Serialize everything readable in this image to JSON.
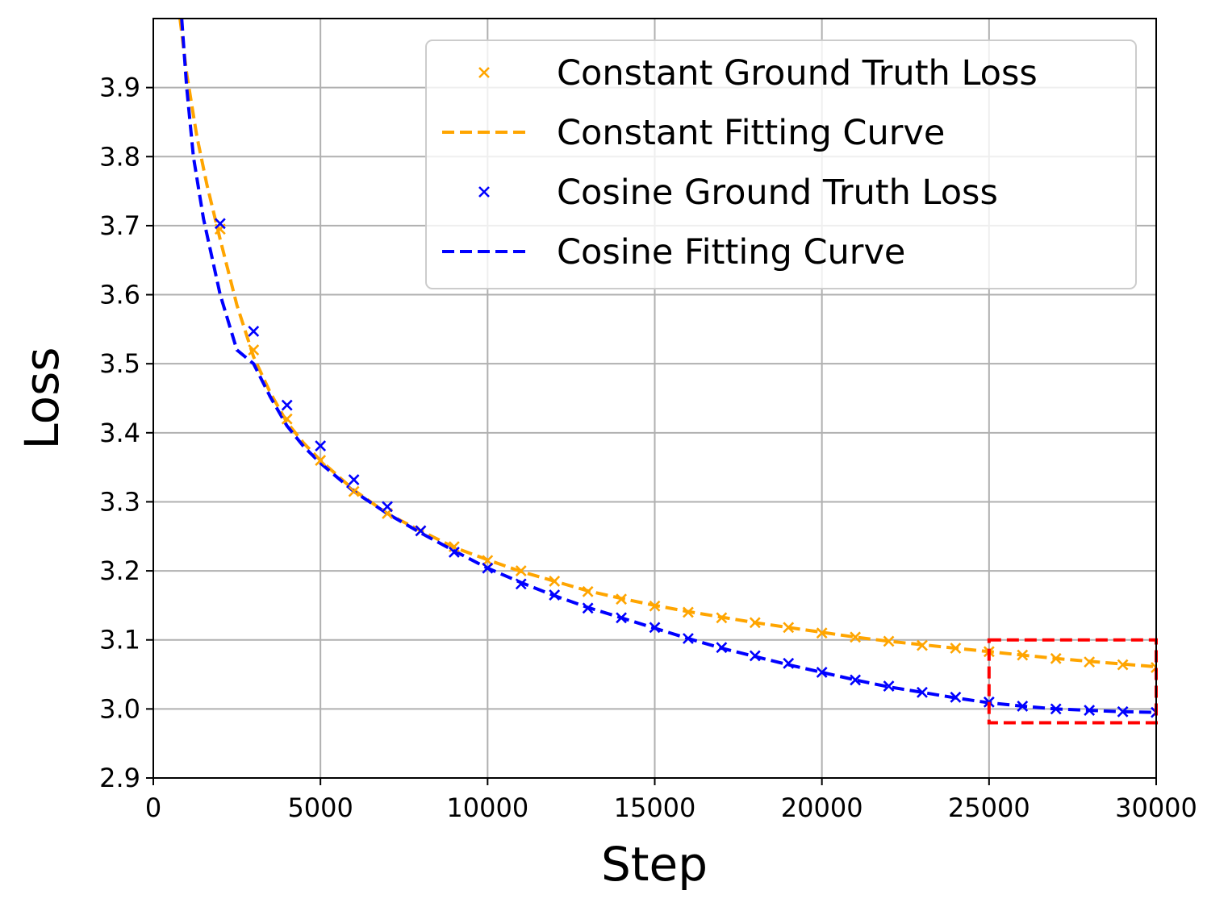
{
  "chart_data": {
    "type": "line",
    "title": "",
    "xlabel": "Step",
    "ylabel": "Loss",
    "xlim": [
      0,
      30000
    ],
    "ylim": [
      2.9,
      4.0
    ],
    "xticks": [
      0,
      5000,
      10000,
      15000,
      20000,
      25000,
      30000
    ],
    "xtick_labels": [
      "0",
      "5000",
      "10000",
      "15000",
      "20000",
      "25000",
      "30000"
    ],
    "yticks": [
      2.9,
      3.0,
      3.1,
      3.2,
      3.3,
      3.4,
      3.5,
      3.6,
      3.7,
      3.8,
      3.9
    ],
    "ytick_labels": [
      "2.9",
      "3.0",
      "3.1",
      "3.2",
      "3.3",
      "3.4",
      "3.5",
      "3.6",
      "3.7",
      "3.8",
      "3.9"
    ],
    "grid": true,
    "legend_position": "top-right",
    "series": [
      {
        "name": "Constant Ground Truth Loss",
        "kind": "markers",
        "marker": "x",
        "color": "#FFA500",
        "x": [
          2000,
          3000,
          4000,
          5000,
          6000,
          7000,
          8000,
          9000,
          10000,
          11000,
          12000,
          13000,
          14000,
          15000,
          16000,
          17000,
          18000,
          19000,
          20000,
          21000,
          22000,
          23000,
          24000,
          25000,
          26000,
          27000,
          28000,
          29000,
          30000
        ],
        "y": [
          3.695,
          3.52,
          3.42,
          3.36,
          3.315,
          3.283,
          3.258,
          3.235,
          3.215,
          3.2,
          3.185,
          3.17,
          3.159,
          3.149,
          3.14,
          3.132,
          3.125,
          3.118,
          3.11,
          3.104,
          3.098,
          3.092,
          3.088,
          3.083,
          3.078,
          3.073,
          3.068,
          3.064,
          3.06
        ]
      },
      {
        "name": "Constant Fitting Curve",
        "kind": "dashed",
        "color": "#FFA500",
        "x": [
          800,
          1000,
          1300,
          1600,
          2000,
          2500,
          3000,
          3500,
          4000,
          4500,
          5000,
          6000,
          7000,
          8000,
          9000,
          10000,
          11000,
          12000,
          13000,
          14000,
          15000,
          16000,
          17000,
          18000,
          19000,
          20000,
          21000,
          22000,
          23000,
          24000,
          25000,
          26000,
          27000,
          28000,
          29000,
          30000
        ],
        "y": [
          4.0,
          3.92,
          3.83,
          3.76,
          3.68,
          3.585,
          3.51,
          3.458,
          3.415,
          3.385,
          3.36,
          3.317,
          3.283,
          3.258,
          3.234,
          3.216,
          3.199,
          3.185,
          3.171,
          3.16,
          3.15,
          3.141,
          3.133,
          3.125,
          3.118,
          3.111,
          3.104,
          3.098,
          3.093,
          3.088,
          3.083,
          3.078,
          3.073,
          3.069,
          3.065,
          3.061
        ]
      },
      {
        "name": "Cosine Ground Truth Loss",
        "kind": "markers",
        "marker": "x",
        "color": "#0000FF",
        "x": [
          2000,
          3000,
          4000,
          5000,
          6000,
          7000,
          8000,
          9000,
          10000,
          11000,
          12000,
          13000,
          14000,
          15000,
          16000,
          17000,
          18000,
          19000,
          20000,
          21000,
          22000,
          23000,
          24000,
          25000,
          26000,
          27000,
          28000,
          29000,
          30000
        ],
        "y": [
          3.703,
          3.547,
          3.44,
          3.381,
          3.332,
          3.293,
          3.258,
          3.227,
          3.204,
          3.181,
          3.165,
          3.146,
          3.132,
          3.118,
          3.102,
          3.089,
          3.077,
          3.066,
          3.053,
          3.042,
          3.033,
          3.024,
          3.017,
          3.01,
          3.004,
          3.0,
          2.998,
          2.996,
          2.995
        ]
      },
      {
        "name": "Cosine Fitting Curve",
        "kind": "dashed",
        "color": "#0000FF",
        "x": [
          850,
          1000,
          1200,
          1500,
          2000,
          2500,
          3000,
          3500,
          4000,
          4500,
          5000,
          6000,
          7000,
          8000,
          9000,
          10000,
          11000,
          12000,
          13000,
          14000,
          15000,
          16000,
          17000,
          18000,
          19000,
          20000,
          21000,
          22000,
          23000,
          24000,
          25000,
          26000,
          27000,
          28000,
          29000,
          30000
        ],
        "y": [
          4.0,
          3.9,
          3.8,
          3.71,
          3.6,
          3.52,
          3.5,
          3.452,
          3.41,
          3.38,
          3.356,
          3.315,
          3.283,
          3.255,
          3.229,
          3.204,
          3.183,
          3.164,
          3.147,
          3.132,
          3.117,
          3.102,
          3.088,
          3.076,
          3.064,
          3.053,
          3.042,
          3.032,
          3.024,
          3.016,
          3.009,
          3.004,
          3.0,
          2.998,
          2.996,
          2.995
        ]
      }
    ],
    "annotations": [
      {
        "type": "dashed-rectangle",
        "color": "#FF0000",
        "x_range": [
          25000,
          30000
        ],
        "y_range": [
          2.98,
          3.1
        ]
      }
    ]
  }
}
